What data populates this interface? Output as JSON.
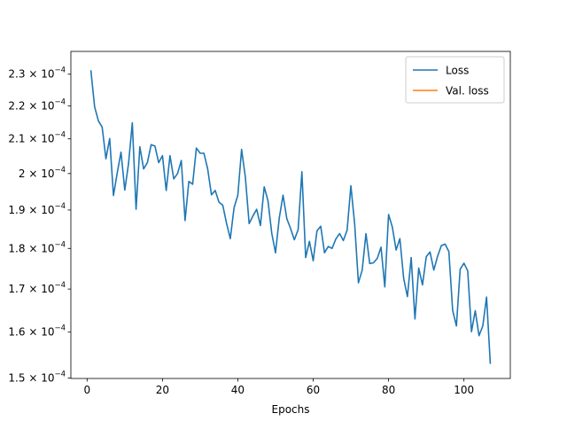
{
  "chart_data": {
    "type": "line",
    "xlabel": "Epochs",
    "ylabel": "",
    "title": "",
    "yscale": "log",
    "xlim": [
      -4.3,
      112.3
    ],
    "ylim": [
      0.0001499,
      0.0002375
    ],
    "xticks": [
      0,
      20,
      40,
      60,
      80,
      100
    ],
    "yticks": [
      {
        "value": 0.00015,
        "mantissa": "1.5",
        "exp": "−4"
      },
      {
        "value": 0.00016,
        "mantissa": "1.6",
        "exp": "−4"
      },
      {
        "value": 0.00017,
        "mantissa": "1.7",
        "exp": "−4"
      },
      {
        "value": 0.00018,
        "mantissa": "1.8",
        "exp": "−4"
      },
      {
        "value": 0.00019,
        "mantissa": "1.9",
        "exp": "−4"
      },
      {
        "value": 0.0002,
        "mantissa": "2",
        "exp": "−4"
      },
      {
        "value": 0.00021,
        "mantissa": "2.1",
        "exp": "−4"
      },
      {
        "value": 0.00022,
        "mantissa": "2.2",
        "exp": "−4"
      },
      {
        "value": 0.00023,
        "mantissa": "2.3",
        "exp": "−4"
      }
    ],
    "grid": false,
    "legend_position": "top-right",
    "series": [
      {
        "name": "Loss",
        "color": "#1f77b4",
        "x": [
          1,
          2,
          3,
          4,
          5,
          6,
          7,
          8,
          9,
          10,
          11,
          12,
          13,
          14,
          15,
          16,
          17,
          18,
          19,
          20,
          21,
          22,
          23,
          24,
          25,
          26,
          27,
          28,
          29,
          30,
          31,
          32,
          33,
          34,
          35,
          36,
          37,
          38,
          39,
          40,
          41,
          42,
          43,
          44,
          45,
          46,
          47,
          48,
          49,
          50,
          51,
          52,
          53,
          54,
          55,
          56,
          57,
          58,
          59,
          60,
          61,
          62,
          63,
          64,
          65,
          66,
          67,
          68,
          69,
          70,
          71,
          72,
          73,
          74,
          75,
          76,
          77,
          78,
          79,
          80,
          81,
          82,
          83,
          84,
          85,
          86,
          87,
          88,
          89,
          90,
          91,
          92,
          93,
          94,
          95,
          96,
          97,
          98,
          99,
          100,
          101,
          102,
          103,
          104,
          105,
          106,
          107
        ],
        "y": [
          0.0002313,
          0.0002197,
          0.0002154,
          0.0002135,
          0.0002042,
          0.0002101,
          0.0001939,
          0.0002002,
          0.0002061,
          0.0001954,
          0.0002028,
          0.0002148,
          0.0001902,
          0.0002077,
          0.0002013,
          0.0002031,
          0.0002083,
          0.0002079,
          0.0002031,
          0.0002051,
          0.0001953,
          0.0002051,
          0.0001985,
          0.0002,
          0.0002037,
          0.0001872,
          0.0001978,
          0.000197,
          0.0002073,
          0.0002058,
          0.0002058,
          0.0002013,
          0.0001941,
          0.0001953,
          0.0001921,
          0.0001913,
          0.0001865,
          0.0001825,
          0.0001906,
          0.000194,
          0.0002069,
          0.000199,
          0.0001864,
          0.0001884,
          0.0001902,
          0.0001859,
          0.0001963,
          0.0001925,
          0.0001839,
          0.0001789,
          0.0001879,
          0.000194,
          0.0001877,
          0.0001851,
          0.0001822,
          0.0001848,
          0.0002005,
          0.0001777,
          0.0001818,
          0.0001769,
          0.0001845,
          0.0001857,
          0.0001789,
          0.0001805,
          0.00018,
          0.0001824,
          0.0001838,
          0.000182,
          0.0001847,
          0.0001966,
          0.0001863,
          0.0001715,
          0.0001746,
          0.0001838,
          0.0001762,
          0.0001764,
          0.0001775,
          0.0001803,
          0.0001705,
          0.0001888,
          0.0001855,
          0.0001796,
          0.0001825,
          0.0001726,
          0.0001682,
          0.0001777,
          0.000163,
          0.0001751,
          0.000171,
          0.0001779,
          0.0001791,
          0.0001746,
          0.000178,
          0.0001807,
          0.0001811,
          0.0001792,
          0.000165,
          0.0001614,
          0.0001748,
          0.0001763,
          0.0001744,
          0.0001601,
          0.0001649,
          0.0001592,
          0.0001614,
          0.0001681,
          0.000153
        ]
      },
      {
        "name": "Val. loss",
        "color": "#ff7f0e",
        "x": [],
        "y": []
      }
    ]
  }
}
